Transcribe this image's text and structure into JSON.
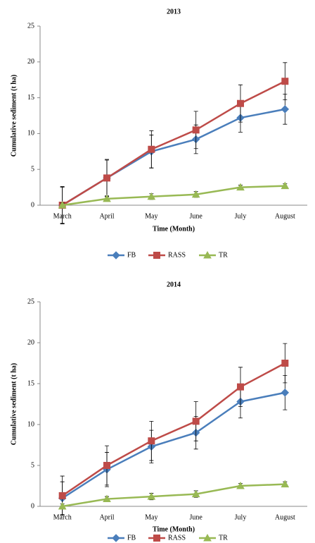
{
  "chart_data": [
    {
      "type": "line",
      "title": "2013",
      "x_label": "Time (Month)",
      "y_label": "Cumulative sediment (t ha)",
      "categories": [
        "March",
        "April",
        "May",
        "June",
        "July",
        "August"
      ],
      "ylim": [
        0,
        25
      ],
      "yticks": [
        0,
        5,
        10,
        15,
        20,
        25
      ],
      "grid": false,
      "legend": "bottom",
      "series": [
        {
          "name": "FB",
          "color": "#4a7ebb",
          "values": [
            0,
            3.8,
            7.5,
            9.2,
            12.2,
            13.4
          ],
          "errors": [
            2.5,
            2.5,
            2.3,
            2.0,
            2.0,
            2.1
          ]
        },
        {
          "name": "RASS",
          "color": "#be4b48",
          "values": [
            0,
            3.8,
            7.8,
            10.5,
            14.2,
            17.3
          ],
          "errors": [
            2.6,
            2.6,
            2.6,
            2.6,
            2.6,
            2.6
          ]
        },
        {
          "name": "TR",
          "color": "#98b954",
          "values": [
            0,
            0.9,
            1.2,
            1.5,
            2.5,
            2.7
          ],
          "errors": [
            0.3,
            0.3,
            0.4,
            0.4,
            0.3,
            0.3
          ]
        }
      ]
    },
    {
      "type": "line",
      "title": "2014",
      "x_label": "Time (Month)",
      "y_label": "Cumulative sediment (t ha)",
      "categories": [
        "March",
        "April",
        "May",
        "June",
        "July",
        "August"
      ],
      "ylim": [
        0,
        25
      ],
      "yticks": [
        0,
        5,
        10,
        15,
        20,
        25
      ],
      "grid": false,
      "legend": "bottom",
      "series": [
        {
          "name": "FB",
          "color": "#4a7ebb",
          "values": [
            1.0,
            4.5,
            7.3,
            9.0,
            12.8,
            13.9
          ],
          "errors": [
            2.0,
            2.1,
            2.0,
            2.0,
            2.0,
            2.1
          ]
        },
        {
          "name": "RASS",
          "color": "#be4b48",
          "values": [
            1.3,
            5.0,
            8.0,
            10.4,
            14.6,
            17.5
          ],
          "errors": [
            2.4,
            2.4,
            2.4,
            2.4,
            2.4,
            2.4
          ]
        },
        {
          "name": "TR",
          "color": "#98b954",
          "values": [
            0,
            0.9,
            1.2,
            1.5,
            2.5,
            2.7
          ],
          "errors": [
            0.3,
            0.3,
            0.4,
            0.4,
            0.3,
            0.3
          ]
        }
      ]
    }
  ]
}
